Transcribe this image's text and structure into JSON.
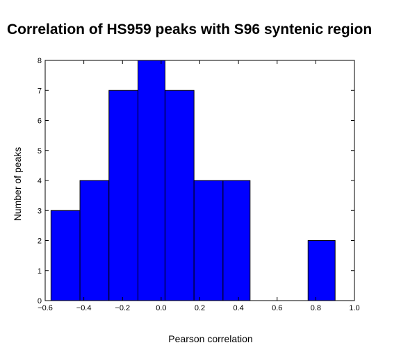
{
  "chart_data": {
    "type": "bar",
    "subtype": "histogram",
    "title": "Correlation of HS959 peaks with S96 syntenic region",
    "xlabel": "Pearson correlation",
    "ylabel": "Number of peaks",
    "bin_edges": [
      -0.57,
      -0.42,
      -0.27,
      -0.12,
      0.02,
      0.17,
      0.32,
      0.46,
      0.61,
      0.76,
      0.9
    ],
    "values": [
      3,
      4,
      7,
      8,
      7,
      4,
      4,
      0,
      0,
      2
    ],
    "xlim": [
      -0.6,
      1.0
    ],
    "ylim": [
      0,
      8
    ],
    "xticks": [
      "−0.6",
      "−0.4",
      "−0.2",
      "0.0",
      "0.2",
      "0.4",
      "0.6",
      "0.8",
      "1.0"
    ],
    "yticks": [
      "0",
      "1",
      "2",
      "3",
      "4",
      "5",
      "6",
      "7",
      "8"
    ],
    "bar_color": "#0000ff",
    "grid": false
  }
}
